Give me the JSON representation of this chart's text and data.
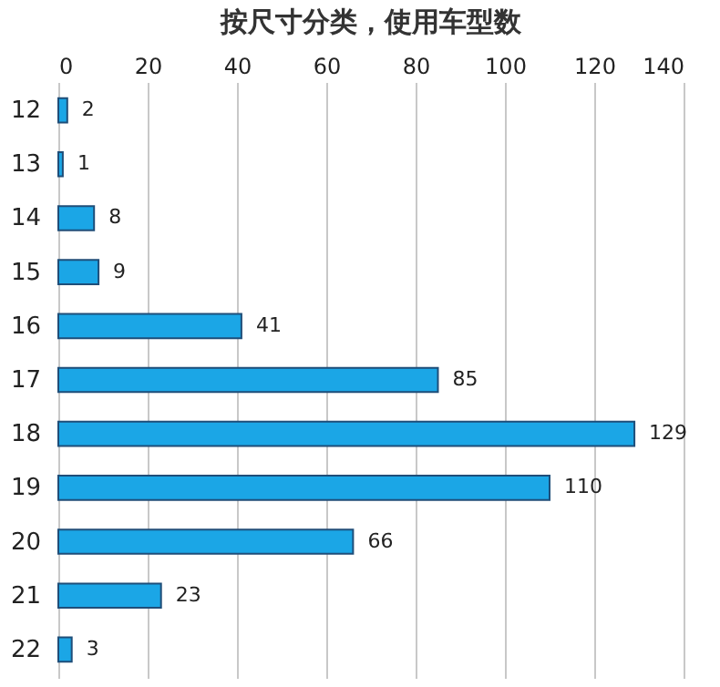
{
  "chart_data": {
    "type": "bar",
    "orientation": "horizontal",
    "title": "按尺寸分类，使用车型数",
    "categories": [
      "12",
      "13",
      "14",
      "15",
      "16",
      "17",
      "18",
      "19",
      "20",
      "21",
      "22"
    ],
    "values": [
      2,
      1,
      8,
      9,
      41,
      85,
      129,
      110,
      66,
      23,
      3
    ],
    "color": "#1ba6e6",
    "xlim": [
      0,
      140
    ],
    "xticks": [
      0,
      20,
      40,
      60,
      80,
      100,
      120,
      140
    ],
    "grid": "x",
    "data_labels": true
  }
}
